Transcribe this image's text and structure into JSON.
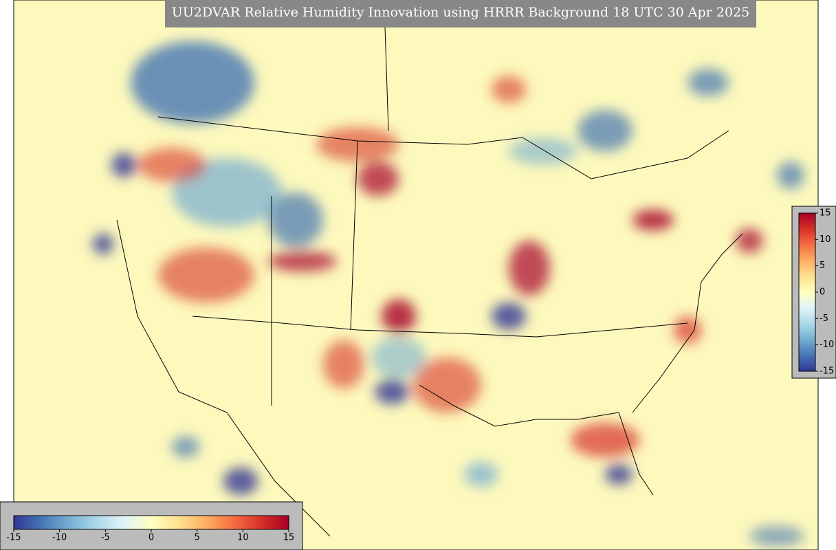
{
  "title": "UU2DVAR Relative Humidity Innovation using HRRR Background 18 UTC 30 Apr 2025",
  "colormap": [
    "#313695",
    "#4575b4",
    "#74add1",
    "#abd9e9",
    "#e0f3f8",
    "#ffffbf",
    "#fee090",
    "#fdae61",
    "#f46d43",
    "#d73027",
    "#a50026"
  ],
  "colorbar_horizontal": {
    "range": [
      -15,
      15
    ],
    "ticks": [
      -15,
      -10,
      -5,
      0,
      5,
      10,
      15
    ]
  },
  "colorbar_vertical": {
    "range": [
      -15,
      15
    ],
    "ticks": [
      15,
      10,
      5,
      0,
      -5,
      -10,
      -15
    ]
  }
}
